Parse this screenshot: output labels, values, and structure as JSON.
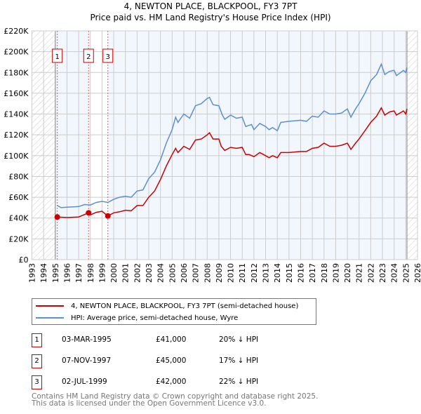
{
  "chart_data": {
    "type": "line",
    "title": "4, NEWTON PLACE, BLACKPOOL, FY3 7PT",
    "subtitle": "Price paid vs. HM Land Registry's House Price Index (HPI)",
    "xlim": [
      1993,
      2026
    ],
    "ylim": [
      0,
      220000
    ],
    "x_ticks": [
      "1993",
      "1994",
      "1995",
      "1996",
      "1997",
      "1998",
      "1999",
      "2000",
      "2001",
      "2002",
      "2003",
      "2004",
      "2005",
      "2006",
      "2007",
      "2008",
      "2009",
      "2010",
      "2011",
      "2012",
      "2013",
      "2014",
      "2015",
      "2016",
      "2017",
      "2018",
      "2019",
      "2020",
      "2021",
      "2022",
      "2023",
      "2024",
      "2025",
      "2026"
    ],
    "y_ticks": [
      "£0",
      "£20K",
      "£40K",
      "£60K",
      "£80K",
      "£100K",
      "£120K",
      "£140K",
      "£160K",
      "£180K",
      "£200K",
      "£220K"
    ],
    "grid": true,
    "data_range": [
      1995.0,
      2025.1
    ],
    "series": [
      {
        "name": "4, NEWTON PLACE, BLACKPOOL, FY3 7PT (semi-detached house)",
        "color": "#cc0000",
        "x": [
          1995.17,
          1996,
          1997,
          1997.85,
          1998,
          1998.5,
          1999,
          1999.5,
          2000,
          2000.5,
          2001,
          2001.5,
          2002,
          2002.5,
          2003,
          2003.5,
          2004,
          2004.5,
          2005,
          2005.3,
          2005.5,
          2006,
          2006.5,
          2007,
          2007.5,
          2008,
          2008.2,
          2008.5,
          2009,
          2009.2,
          2009.5,
          2010,
          2010.5,
          2011,
          2011.3,
          2011.6,
          2012,
          2012.5,
          2013,
          2013.3,
          2013.6,
          2014,
          2014.3,
          2015,
          2016,
          2016.5,
          2017,
          2017.5,
          2018,
          2018.5,
          2019,
          2019.5,
          2020,
          2020.3,
          2020.7,
          2021,
          2021.5,
          2022,
          2022.5,
          2022.9,
          2023.2,
          2023.6,
          2024,
          2024.2,
          2024.8,
          2025,
          2025.1
        ],
        "y": [
          41,
          40.5,
          41,
          45,
          43,
          45.5,
          46.5,
          42,
          45,
          46,
          47.5,
          47,
          52,
          52,
          60,
          66,
          77,
          90,
          101,
          107,
          103,
          109,
          106,
          115,
          116,
          120,
          122,
          116,
          116,
          109,
          105,
          108,
          107,
          108,
          101,
          101,
          99,
          103,
          100,
          98,
          100,
          98,
          103,
          103,
          104,
          104,
          107,
          108,
          112,
          109,
          109,
          110,
          112,
          106,
          112,
          116,
          124,
          132,
          138,
          146,
          139,
          142,
          143,
          139,
          143,
          140,
          145
        ]
      },
      {
        "name": "HPI: Average price, semi-detached house, Wyre",
        "color": "#5b8fd4",
        "x": [
          1995.17,
          1995.5,
          1996,
          1997,
          1997.5,
          1998,
          1998.5,
          1999,
          1999.5,
          2000,
          2000.5,
          2001,
          2001.5,
          2002,
          2002.5,
          2003,
          2003.5,
          2004,
          2004.5,
          2005,
          2005.3,
          2005.5,
          2006,
          2006.5,
          2007,
          2007.5,
          2008,
          2008.2,
          2008.5,
          2009,
          2009.3,
          2009.5,
          2010,
          2010.5,
          2011,
          2011.3,
          2011.8,
          2012,
          2012.5,
          2013,
          2013.3,
          2013.6,
          2014,
          2014.3,
          2015,
          2016,
          2016.5,
          2017,
          2017.5,
          2018,
          2018.5,
          2019,
          2019.5,
          2020,
          2020.3,
          2020.7,
          2021,
          2021.5,
          2022,
          2022.5,
          2022.9,
          2023.2,
          2023.6,
          2024,
          2024.2,
          2024.8,
          2025,
          2025.1
        ],
        "y": [
          52,
          50,
          50.5,
          51,
          53,
          52.5,
          55,
          56,
          55,
          58,
          60,
          61,
          60,
          66,
          67,
          78,
          84,
          96,
          112,
          125,
          137,
          132,
          140,
          136,
          148,
          150,
          155,
          156,
          149,
          148,
          139,
          135,
          139,
          136,
          137,
          128,
          130,
          125,
          131,
          128,
          125,
          127,
          124,
          132,
          133,
          134,
          133,
          138,
          137,
          143,
          140,
          140,
          141,
          145,
          137,
          145,
          150,
          160,
          172,
          178,
          188,
          178,
          181,
          182,
          177,
          182,
          180,
          185
        ]
      }
    ],
    "y_units": "thousands GBP",
    "sales": [
      {
        "label": "1",
        "x": 1995.17,
        "price": 41
      },
      {
        "label": "2",
        "x": 1997.85,
        "price": 45
      },
      {
        "label": "3",
        "x": 1999.5,
        "price": 42
      }
    ]
  },
  "legend": {
    "property": "4, NEWTON PLACE, BLACKPOOL, FY3 7PT (semi-detached house)",
    "hpi": "HPI: Average price, semi-detached house, Wyre"
  },
  "transactions": [
    {
      "num": "1",
      "date": "03-MAR-1995",
      "price": "£41,000",
      "delta": "20% ↓ HPI"
    },
    {
      "num": "2",
      "date": "07-NOV-1997",
      "price": "£45,000",
      "delta": "17% ↓ HPI"
    },
    {
      "num": "3",
      "date": "02-JUL-1999",
      "price": "£42,000",
      "delta": "22% ↓ HPI"
    }
  ],
  "footer": {
    "line1": "Contains HM Land Registry data © Crown copyright and database right 2025.",
    "line2": "This data is licensed under the Open Government Licence v3.0."
  }
}
